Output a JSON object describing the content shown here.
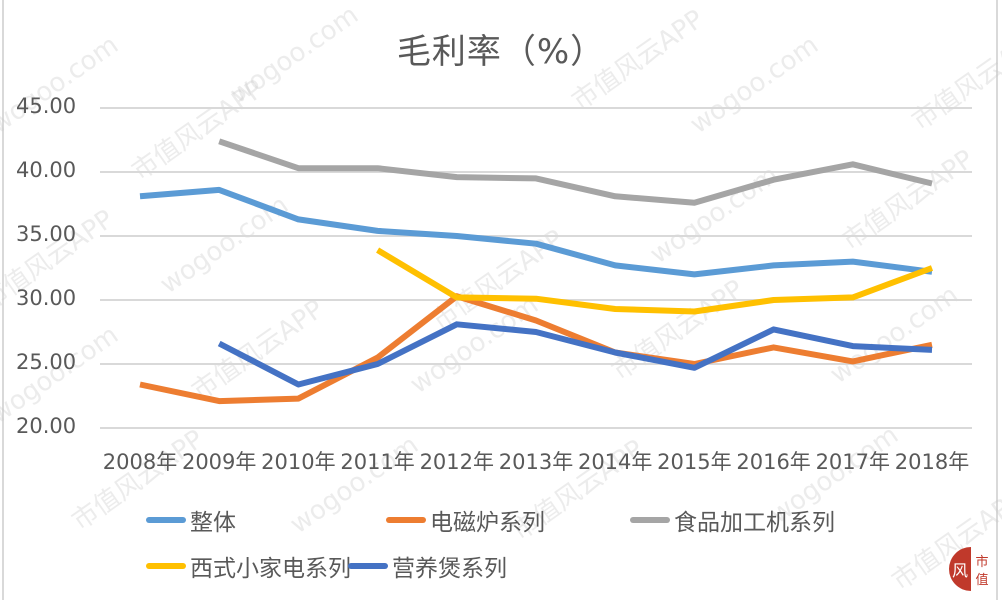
{
  "title": "毛利率（%）",
  "chart_data": {
    "type": "line",
    "title": "毛利率（%）",
    "xlabel": "",
    "ylabel": "",
    "ylim": [
      20,
      45
    ],
    "yticks": [
      "45.00",
      "40.00",
      "35.00",
      "30.00",
      "25.00",
      "20.00"
    ],
    "grid": true,
    "legend_position": "bottom",
    "categories": [
      "2008年",
      "2009年",
      "2010年",
      "2011年",
      "2012年",
      "2013年",
      "2014年",
      "2015年",
      "2016年",
      "2017年",
      "2018年"
    ],
    "series": [
      {
        "name": "整体",
        "color": "#5b9bd5",
        "values": [
          38.1,
          38.6,
          36.3,
          35.4,
          35.0,
          34.4,
          32.7,
          32.0,
          32.7,
          33.0,
          32.2
        ]
      },
      {
        "name": "电磁炉系列",
        "color": "#ed7d31",
        "values": [
          23.4,
          22.1,
          22.3,
          25.5,
          30.3,
          28.4,
          25.9,
          25.0,
          26.3,
          25.2,
          26.5
        ]
      },
      {
        "name": "食品加工机系列",
        "color": "#a5a5a5",
        "values": [
          null,
          42.4,
          40.3,
          40.3,
          39.6,
          39.5,
          38.1,
          37.6,
          39.4,
          40.6,
          39.1
        ]
      },
      {
        "name": "西式小家电系列",
        "color": "#ffc000",
        "values": [
          null,
          null,
          null,
          33.9,
          30.2,
          30.1,
          29.3,
          29.1,
          30.0,
          30.2,
          32.5
        ]
      },
      {
        "name": "营养煲系列",
        "color": "#4472c4",
        "values": [
          null,
          26.6,
          23.4,
          25.0,
          28.1,
          27.5,
          25.9,
          24.7,
          27.7,
          26.4,
          26.1
        ]
      }
    ]
  },
  "watermark": {
    "text_a": "wogoo.com",
    "text_b": "市值风云APP"
  },
  "logo": {
    "text": "市值"
  }
}
